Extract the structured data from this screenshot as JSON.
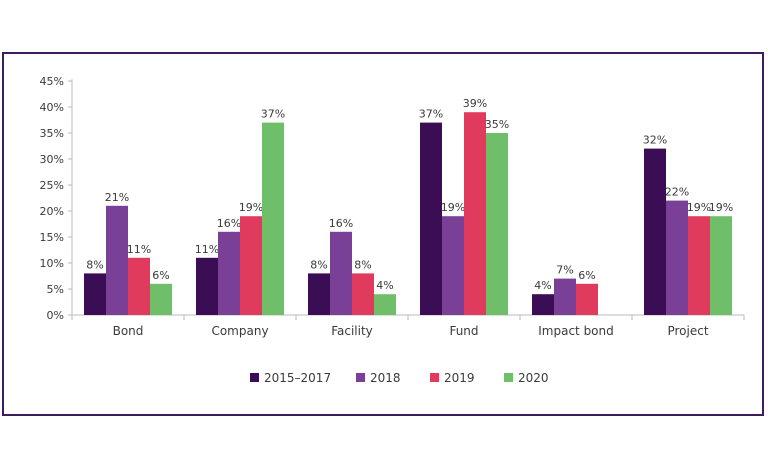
{
  "chart_data": {
    "type": "bar",
    "title": "",
    "xlabel": "",
    "ylabel": "",
    "categories": [
      "Bond",
      "Company",
      "Facility",
      "Fund",
      "Impact bond",
      "Project"
    ],
    "ylim": [
      0,
      45
    ],
    "yticks": [
      0,
      5,
      10,
      15,
      20,
      25,
      30,
      35,
      40,
      45
    ],
    "ytick_labels": [
      "0%",
      "5%",
      "10%",
      "15%",
      "20%",
      "25%",
      "30%",
      "35%",
      "40%",
      "45%"
    ],
    "legend_position": "bottom",
    "series": [
      {
        "name": "2015–2017",
        "color": "#3b0d54",
        "values": [
          8,
          11,
          8,
          37,
          4,
          32
        ],
        "labels": [
          "8%",
          "11%",
          "8%",
          "37%",
          "4%",
          "32%"
        ]
      },
      {
        "name": "2018",
        "color": "#7a3f96",
        "values": [
          21,
          16,
          16,
          19,
          7,
          22
        ],
        "labels": [
          "21%",
          "16%",
          "16%",
          "19%",
          "7%",
          "22%"
        ]
      },
      {
        "name": "2019",
        "color": "#e03a5c",
        "values": [
          11,
          19,
          8,
          39,
          6,
          19
        ],
        "labels": [
          "11%",
          "19%",
          "8%",
          "39%",
          "6%",
          "19%"
        ]
      },
      {
        "name": "2020",
        "color": "#6fbf6a",
        "values": [
          6,
          37,
          4,
          35,
          null,
          19
        ],
        "labels": [
          "6%",
          "37%",
          "4%",
          "35%",
          null,
          "19%"
        ]
      }
    ]
  },
  "frame": {
    "border_color": "#3e1a5e",
    "axis_color": "#bbbbbb"
  }
}
